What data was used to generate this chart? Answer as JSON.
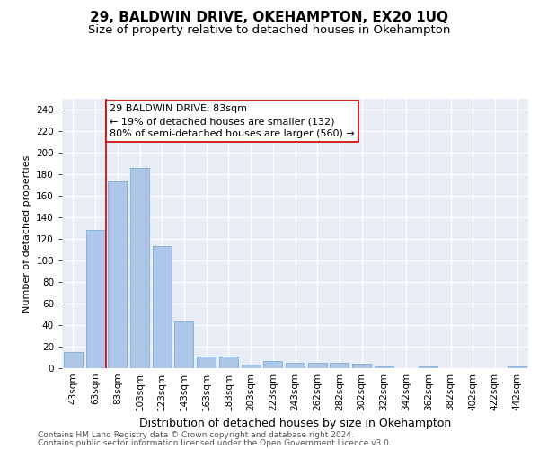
{
  "title": "29, BALDWIN DRIVE, OKEHAMPTON, EX20 1UQ",
  "subtitle": "Size of property relative to detached houses in Okehampton",
  "xlabel": "Distribution of detached houses by size in Okehampton",
  "ylabel": "Number of detached properties",
  "categories": [
    "43sqm",
    "63sqm",
    "83sqm",
    "103sqm",
    "123sqm",
    "143sqm",
    "163sqm",
    "183sqm",
    "203sqm",
    "223sqm",
    "243sqm",
    "262sqm",
    "282sqm",
    "302sqm",
    "322sqm",
    "342sqm",
    "362sqm",
    "382sqm",
    "402sqm",
    "422sqm",
    "442sqm"
  ],
  "values": [
    15,
    128,
    173,
    186,
    113,
    43,
    11,
    11,
    3,
    7,
    5,
    5,
    5,
    4,
    2,
    0,
    2,
    0,
    0,
    0,
    2
  ],
  "bar_color": "#aec6e8",
  "bar_edge_color": "#7aadd4",
  "vline_color": "#cc0000",
  "annotation_line1": "29 BALDWIN DRIVE: 83sqm",
  "annotation_line2": "← 19% of detached houses are smaller (132)",
  "annotation_line3": "80% of semi-detached houses are larger (560) →",
  "annotation_box_facecolor": "white",
  "annotation_box_edgecolor": "#cc0000",
  "ylim_max": 250,
  "ytick_step": 20,
  "background_color": "#e8ecf4",
  "plot_bg_color": "#e8ecf4",
  "title_fontsize": 11,
  "subtitle_fontsize": 9.5,
  "xlabel_fontsize": 9,
  "ylabel_fontsize": 8,
  "tick_fontsize": 7.5,
  "annotation_fontsize": 8,
  "footer_fontsize": 6.5,
  "footer_line1": "Contains HM Land Registry data © Crown copyright and database right 2024.",
  "footer_line2": "Contains public sector information licensed under the Open Government Licence v3.0."
}
